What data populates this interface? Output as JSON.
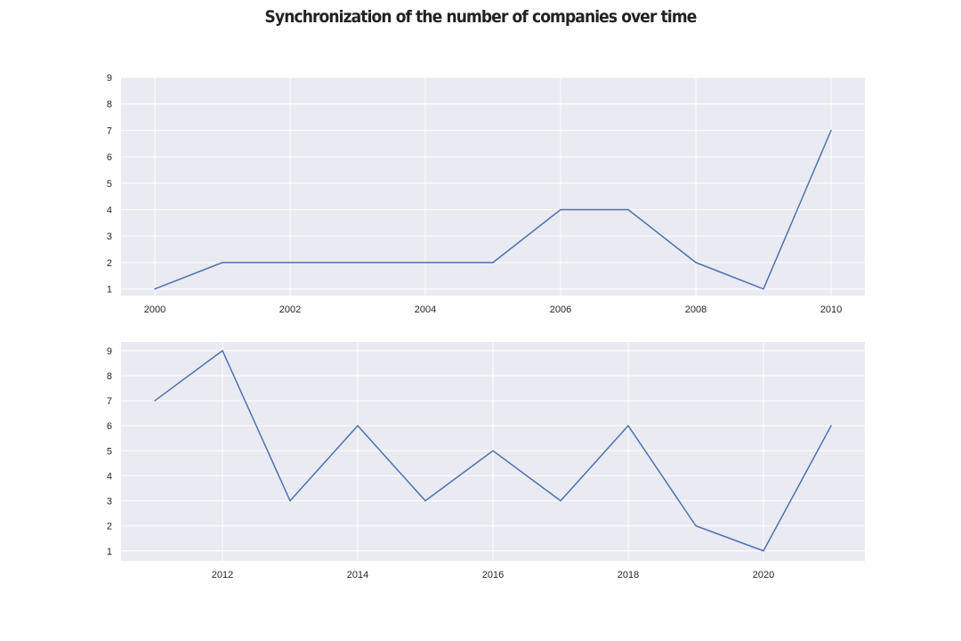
{
  "chart_data": {
    "title": "Synchronization of the number of companies over time",
    "type": "line",
    "series_color": "#4c72b0",
    "background": "#eaeaf2",
    "grid_color": "#ffffff",
    "grid": true,
    "subplots": [
      {
        "type": "line",
        "x": [
          2000,
          2001,
          2002,
          2003,
          2004,
          2005,
          2006,
          2007,
          2008,
          2009,
          2010
        ],
        "y": [
          1,
          2,
          2,
          2,
          2,
          2,
          4,
          4,
          2,
          1,
          7
        ],
        "xlim": [
          1999.5,
          2010.5
        ],
        "ylim": [
          0.75,
          9
        ],
        "xticks": [
          "2000",
          "2002",
          "2004",
          "2006",
          "2008",
          "2010"
        ],
        "yticks": [
          "1",
          "2",
          "3",
          "4",
          "5",
          "6",
          "7",
          "8",
          "9"
        ],
        "xlabel": "",
        "ylabel": ""
      },
      {
        "type": "line",
        "x": [
          2011,
          2012,
          2013,
          2014,
          2015,
          2016,
          2017,
          2018,
          2019,
          2020,
          2021
        ],
        "y": [
          7,
          9,
          3,
          6,
          3,
          5,
          3,
          6,
          2,
          1,
          6
        ],
        "xlim": [
          2010.5,
          2021.5
        ],
        "ylim": [
          0.6,
          9.35
        ],
        "xticks": [
          "2012",
          "2014",
          "2016",
          "2018",
          "2020"
        ],
        "yticks": [
          "1",
          "2",
          "3",
          "4",
          "5",
          "6",
          "7",
          "8",
          "9"
        ],
        "xlabel": "",
        "ylabel": ""
      }
    ]
  }
}
